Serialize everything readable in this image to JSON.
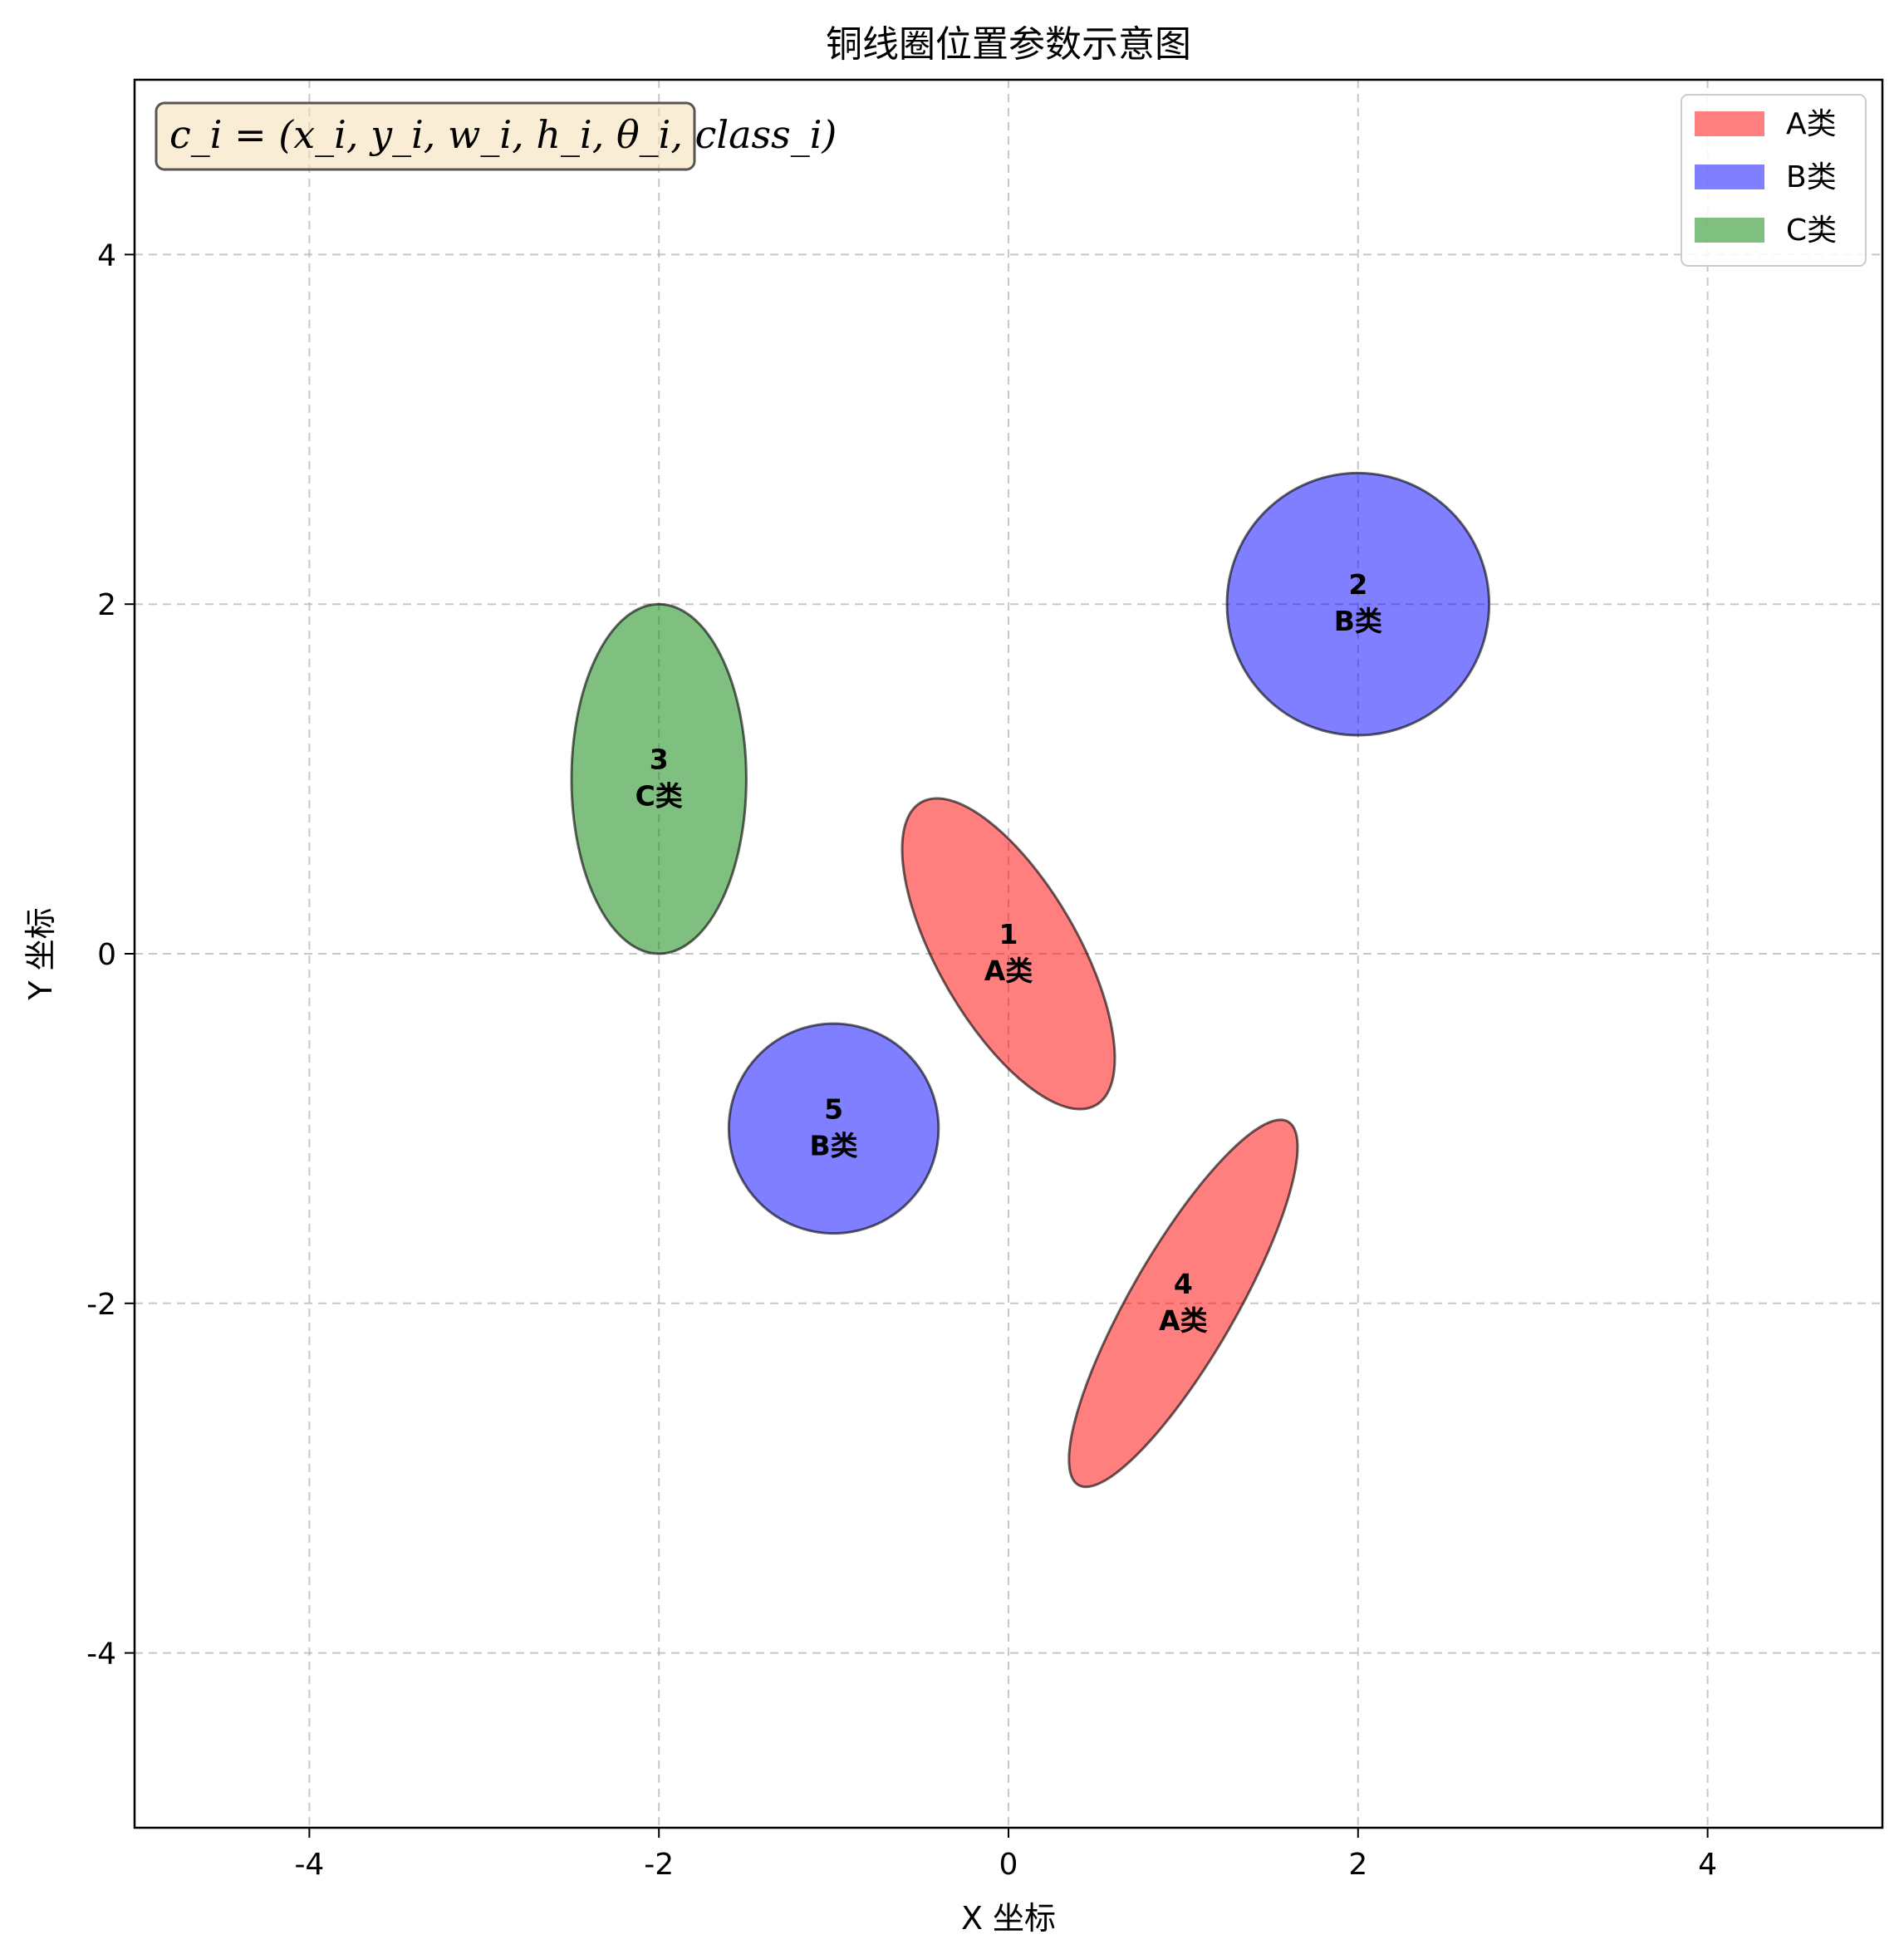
{
  "chart_data": {
    "type": "scatter",
    "title": "铜线圈位置参数示意图",
    "xlabel": "X 坐标",
    "ylabel": "Y 坐标",
    "xlim": [
      -5,
      5
    ],
    "ylim": [
      -5,
      5
    ],
    "xticks": [
      -4,
      -2,
      0,
      2,
      4
    ],
    "yticks": [
      -4,
      -2,
      0,
      2,
      4
    ],
    "xtick_labels": [
      "-4",
      "-2",
      "0",
      "2",
      "4"
    ],
    "ytick_labels": [
      "-4",
      "-2",
      "0",
      "2",
      "4"
    ],
    "grid": true,
    "legend_position": "top-right",
    "annotation": "c_i = (x_i, y_i, w_i, h_i, θ_i, class_i)",
    "classes": [
      {
        "name": "A类",
        "color": "#ff0000"
      },
      {
        "name": "B类",
        "color": "#0000ff"
      },
      {
        "name": "C类",
        "color": "#008000"
      }
    ],
    "coils": [
      {
        "id": "1",
        "x": 0,
        "y": 0,
        "w": 0.8,
        "h": 2.0,
        "theta": -30,
        "class": "A类"
      },
      {
        "id": "2",
        "x": 2,
        "y": 2,
        "w": 1.5,
        "h": 1.5,
        "theta": 0,
        "class": "B类"
      },
      {
        "id": "3",
        "x": -2,
        "y": 1,
        "w": 1.0,
        "h": 2.0,
        "theta": 0,
        "class": "C类"
      },
      {
        "id": "4",
        "x": 1,
        "y": -2,
        "w": 0.6,
        "h": 2.4,
        "theta": 30,
        "class": "A类"
      },
      {
        "id": "5",
        "x": -1,
        "y": -1,
        "w": 1.2,
        "h": 1.2,
        "theta": 0,
        "class": "B类"
      }
    ]
  }
}
